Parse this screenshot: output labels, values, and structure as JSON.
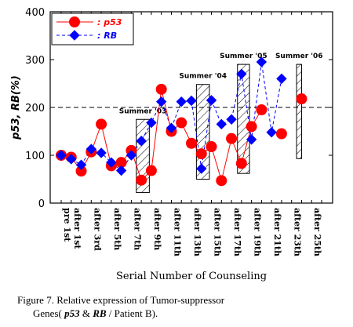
{
  "chart_data": {
    "type": "line",
    "ylabel": "p53, RB(%)",
    "xlabel": "Serial Number of Counseling",
    "ylim": [
      0,
      400
    ],
    "yticks": [
      0,
      100,
      200,
      300,
      400
    ],
    "reference_line": 200,
    "legend_placement": "top-left",
    "x_count": 27,
    "x_tick_labels": [
      {
        "index": 0,
        "label": "pre 1st"
      },
      {
        "index": 1,
        "label": "after 1st"
      },
      {
        "index": 3,
        "label": "after 3rd"
      },
      {
        "index": 5,
        "label": "after 5th"
      },
      {
        "index": 7,
        "label": "after 7th"
      },
      {
        "index": 9,
        "label": "after 9th"
      },
      {
        "index": 11,
        "label": "after 11th"
      },
      {
        "index": 13,
        "label": "after 13th"
      },
      {
        "index": 15,
        "label": "after 15th"
      },
      {
        "index": 17,
        "label": "after 17th"
      },
      {
        "index": 19,
        "label": "after 19th"
      },
      {
        "index": 21,
        "label": "after 21th"
      },
      {
        "index": 23,
        "label": "after 23th"
      },
      {
        "index": 25,
        "label": "after 25th"
      }
    ],
    "series": [
      {
        "name": "p53",
        "color": "#ff0000",
        "marker": "circle",
        "line": "solid",
        "values": [
          100,
          96,
          67,
          107,
          165,
          78,
          85,
          110,
          48,
          68,
          238,
          150,
          168,
          125,
          103,
          118,
          47,
          135,
          83,
          160,
          195,
          null,
          145,
          null,
          218,
          null,
          null
        ]
      },
      {
        "name": "RB",
        "color": "#0000ff",
        "marker": "diamond",
        "line": "dashed",
        "values": [
          100,
          92,
          80,
          113,
          105,
          85,
          68,
          100,
          130,
          168,
          212,
          157,
          212,
          214,
          72,
          215,
          165,
          175,
          270,
          133,
          295,
          148,
          260,
          null,
          null,
          null,
          null
        ]
      }
    ],
    "annotations": [
      {
        "label": "Summer '03",
        "x_start": 7.5,
        "x_end": 8.8,
        "y_low": 22,
        "y_high": 175
      },
      {
        "label": "Summer '04",
        "x_start": 13.5,
        "x_end": 14.8,
        "y_low": 50,
        "y_high": 248
      },
      {
        "label": "Summer '05",
        "x_start": 17.6,
        "x_end": 18.8,
        "y_low": 62,
        "y_high": 290
      },
      {
        "label": "Summer '06",
        "x_start": 23.5,
        "x_end": 24.0,
        "y_low": 93,
        "y_high": 290
      }
    ]
  },
  "caption": {
    "line1": "Figure 7. Relative expression of Tumor-suppressor",
    "line2_prefix": "Genes(",
    "p53": "p53",
    "amp": " & ",
    "rb": "RB",
    "line2_suffix": " / Patient B)."
  }
}
